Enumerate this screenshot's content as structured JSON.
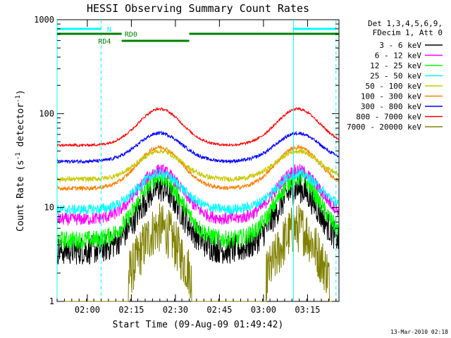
{
  "chart_data": {
    "type": "line",
    "title": "HESSI Observing Summary Count Rates",
    "xlabel": "Start Time (09-Aug-09 01:49:42)",
    "ylabel_main": "Count Rate (s",
    "ylabel_sup1": "-1",
    "ylabel_mid": " detector",
    "ylabel_sup2": "-1",
    "ylabel_end": ")",
    "y_scale": "log",
    "ylim": [
      1,
      1000
    ],
    "xlim_minutes": [
      0,
      96
    ],
    "x_ticks": [
      {
        "label": "02:00",
        "minute": 10.3
      },
      {
        "label": "02:15",
        "minute": 25.3
      },
      {
        "label": "02:30",
        "minute": 40.3
      },
      {
        "label": "02:45",
        "minute": 55.3
      },
      {
        "label": "03:00",
        "minute": 70.3
      },
      {
        "label": "03:15",
        "minute": 85.3
      }
    ],
    "y_ticks": [
      {
        "label": "1",
        "value": 1
      },
      {
        "label": "10",
        "value": 10
      },
      {
        "label": "100",
        "value": 100
      },
      {
        "label": "1000",
        "value": 1000
      }
    ],
    "legend_header": [
      "Det 1,3,4,5,6,9,",
      "FDecim 1, Att 0"
    ],
    "legend_position": "right",
    "series": [
      {
        "name": "3 - 6 keV",
        "color": "#000000",
        "baseline": 3.5,
        "peak": 16,
        "noise": 0.35
      },
      {
        "name": "6 - 12 keV",
        "color": "#ff00ff",
        "baseline": 7.5,
        "peak": 25,
        "noise": 0.15
      },
      {
        "name": "12 - 25 keV",
        "color": "#00ff00",
        "baseline": 4.5,
        "peak": 21,
        "noise": 0.22
      },
      {
        "name": "25 - 50 keV",
        "color": "#00ffff",
        "baseline": 9.5,
        "peak": 23,
        "noise": 0.12
      },
      {
        "name": "50 - 100 keV",
        "color": "#c8c800",
        "baseline": 20,
        "peak": 40,
        "noise": 0.06
      },
      {
        "name": "100 - 300 keV",
        "color": "#ff8000",
        "baseline": 16,
        "peak": 44,
        "noise": 0.05
      },
      {
        "name": "300 - 800 keV",
        "color": "#0000ff",
        "baseline": 31,
        "peak": 62,
        "noise": 0.04
      },
      {
        "name": "800 - 7000 keV",
        "color": "#ff0000",
        "baseline": 46,
        "peak": 112,
        "noise": 0.03
      },
      {
        "name": "7000 - 20000 keV",
        "color": "#808000",
        "baseline": 1,
        "peak": 6,
        "noise": 0.6
      }
    ],
    "saa_peaks_minutes": [
      35,
      82
    ],
    "vertical_markers": [
      {
        "minute": 0,
        "style": "solid",
        "color": "#00ffff"
      },
      {
        "minute": 15,
        "style": "dashed",
        "color": "#00ffff"
      },
      {
        "minute": 80.5,
        "style": "solid",
        "color": "#00ffff"
      },
      {
        "minute": 95,
        "style": "dashed",
        "color": "#00ffff"
      }
    ],
    "flag_bars": [
      {
        "label": "N",
        "color": "#00ffff",
        "row": 0,
        "segments": [
          [
            0,
            15
          ],
          [
            80.5,
            95
          ]
        ],
        "label_minute": 17
      },
      {
        "label": "RD0",
        "color": "#008000",
        "row": 1,
        "segments": [
          [
            0,
            22
          ],
          [
            45,
            96
          ]
        ],
        "label_minute": 23
      },
      {
        "label": "RD4",
        "color": "#008000",
        "row": 2,
        "segments": [
          [
            22,
            45
          ]
        ],
        "label_minute": 14
      }
    ]
  },
  "footer": {
    "timestamp": "13-Mar-2010 02:18"
  }
}
